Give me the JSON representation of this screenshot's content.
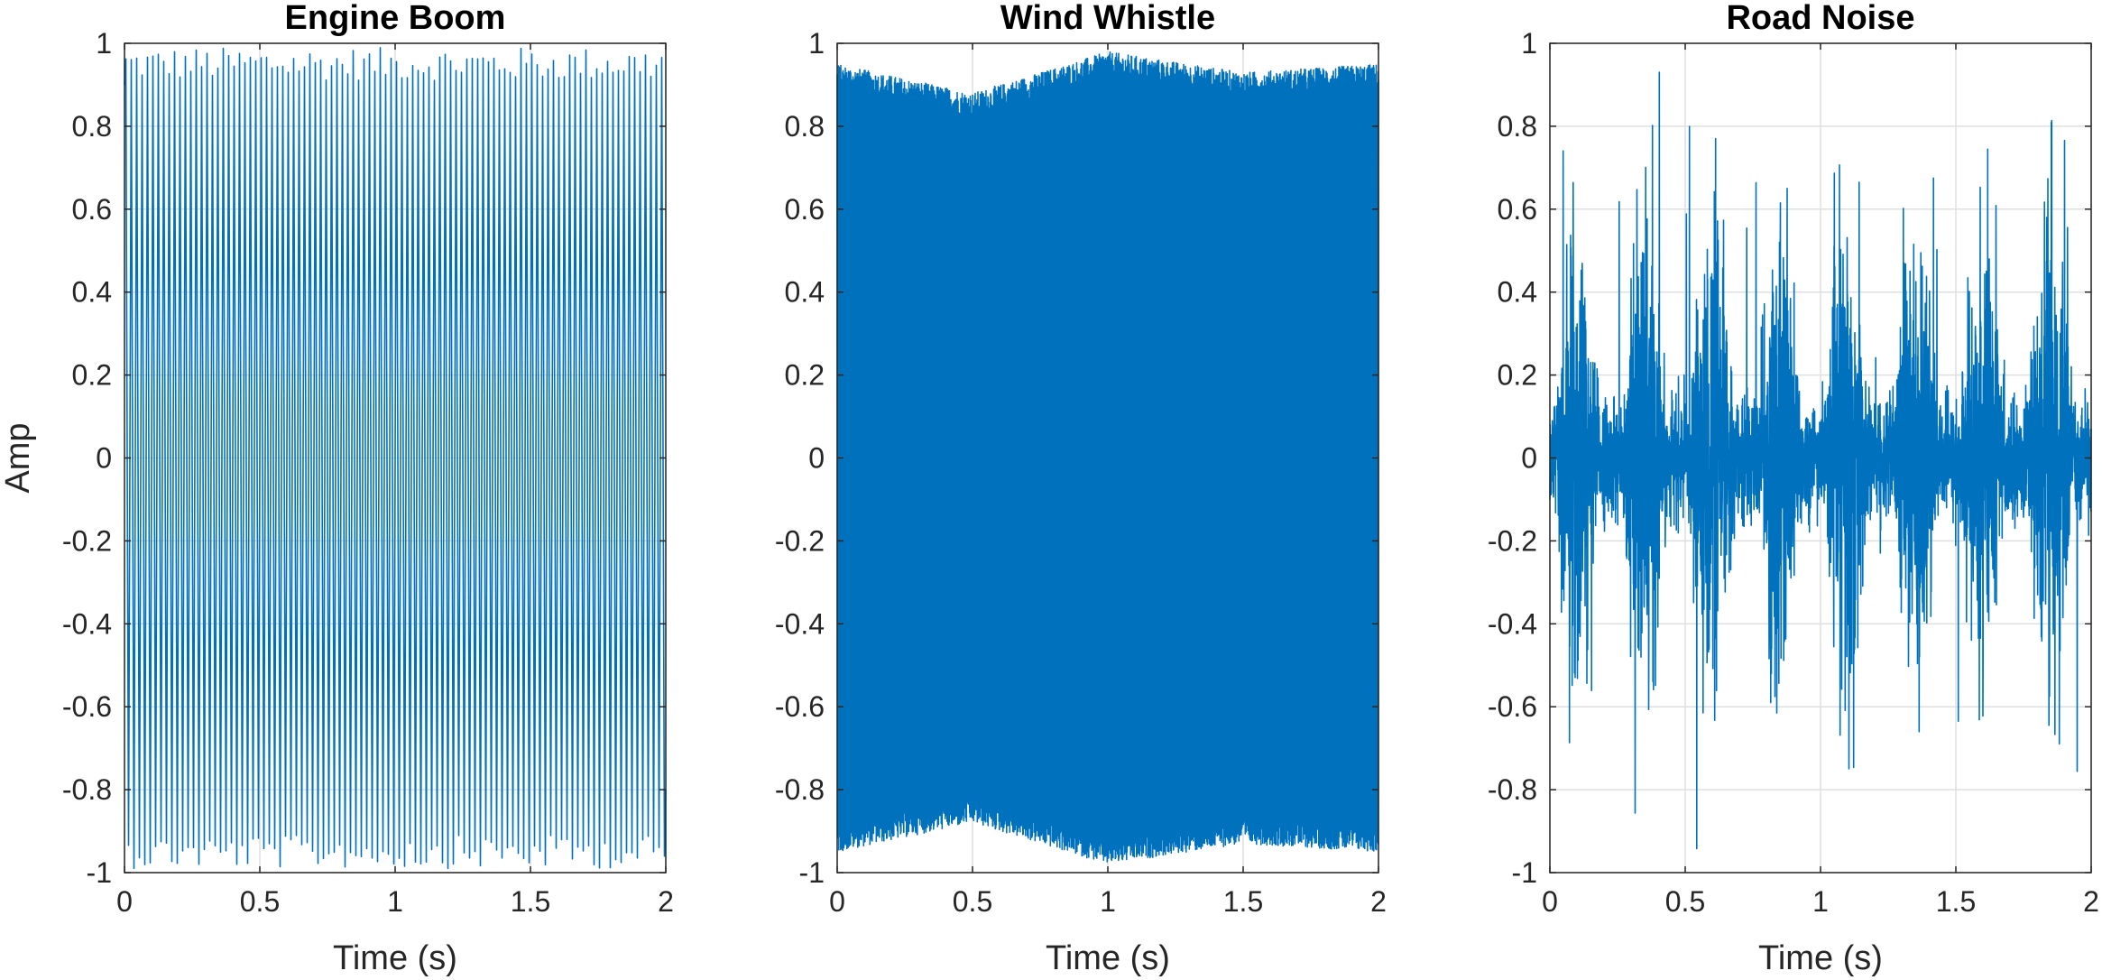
{
  "figure": {
    "title": "",
    "colors": {
      "line": "#0072BD",
      "grid": "#DFDFDF",
      "axes": "#262626",
      "background": "#FFFFFF"
    }
  },
  "chart_data": [
    {
      "type": "line",
      "title": "Engine Boom",
      "xlabel": "Time (s)",
      "ylabel": "Amp",
      "xlim": [
        0,
        2
      ],
      "ylim": [
        -1,
        1
      ],
      "xticks": [
        0,
        0.5,
        1,
        1.5,
        2
      ],
      "xtick_labels": [
        "0",
        "0.5",
        "1",
        "1.5",
        "2"
      ],
      "yticks": [
        -1,
        -0.8,
        -0.6,
        -0.4,
        -0.2,
        0,
        0.2,
        0.4,
        0.6,
        0.8,
        1
      ],
      "ytick_labels": [
        "-1",
        "-0.8",
        "-0.6",
        "-0.4",
        "-0.2",
        "0",
        "0.2",
        "0.4",
        "0.6",
        "0.8",
        "1"
      ],
      "grid": true,
      "signal": {
        "kind": "periodic-tone",
        "cycles": 100,
        "amplitude": 0.95,
        "peak_jitter": 0.04,
        "duration": 2
      }
    },
    {
      "type": "line",
      "title": "Wind Whistle",
      "xlabel": "Time (s)",
      "ylabel": "",
      "xlim": [
        0,
        2
      ],
      "ylim": [
        -1,
        1
      ],
      "xticks": [
        0,
        0.5,
        1,
        1.5,
        2
      ],
      "xtick_labels": [
        "0",
        "0.5",
        "1",
        "1.5",
        "2"
      ],
      "yticks": [
        -1,
        -0.8,
        -0.6,
        -0.4,
        -0.2,
        0,
        0.2,
        0.4,
        0.6,
        0.8,
        1
      ],
      "ytick_labels": [
        "-1",
        "-0.8",
        "-0.6",
        "-0.4",
        "-0.2",
        "0",
        "0.2",
        "0.4",
        "0.6",
        "0.8",
        "1"
      ],
      "grid": true,
      "signal": {
        "kind": "dense-tone",
        "envelope_t": [
          0,
          0.5,
          1.0,
          1.5,
          2.0
        ],
        "envelope_amp": [
          0.92,
          0.85,
          0.95,
          0.9,
          0.92
        ],
        "duration": 2
      }
    },
    {
      "type": "line",
      "title": "Road Noise",
      "xlabel": "Time (s)",
      "ylabel": "",
      "xlim": [
        0,
        2
      ],
      "ylim": [
        -1,
        1
      ],
      "xticks": [
        0,
        0.5,
        1,
        1.5,
        2
      ],
      "xtick_labels": [
        "0",
        "0.5",
        "1",
        "1.5",
        "2"
      ],
      "yticks": [
        -1,
        -0.8,
        -0.6,
        -0.4,
        -0.2,
        0,
        0.2,
        0.4,
        0.6,
        0.8,
        1
      ],
      "ytick_labels": [
        "-1",
        "-0.8",
        "-0.6",
        "-0.4",
        "-0.2",
        "0",
        "0.2",
        "0.4",
        "0.6",
        "0.8",
        "1"
      ],
      "grid": true,
      "signal": {
        "kind": "bursty-noise",
        "burst_centers": [
          0.1,
          0.35,
          0.6,
          0.85,
          1.1,
          1.35,
          1.6,
          1.85
        ],
        "burst_peak": 0.65,
        "floor": 0.15,
        "max_peak": 1.0,
        "duration": 2
      }
    }
  ]
}
